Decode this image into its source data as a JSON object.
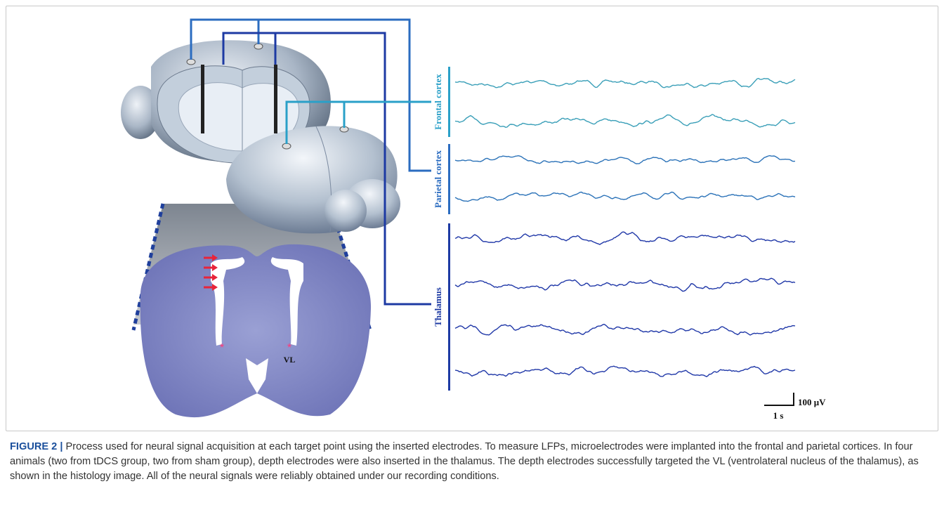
{
  "figure": {
    "labels": {
      "frontal": "Frontal cortex",
      "parietal": "Parietal cortex",
      "thalamus": "Thalamus",
      "vl": "VL"
    },
    "scale_bar": {
      "amplitude": "100 μV",
      "time": "1 s"
    },
    "caption": {
      "label": "FIGURE 2 |",
      "text": "Process used for neural signal acquisition at each target point using the inserted electrodes. To measure LFPs, microelectrodes were implanted into the frontal and parietal cortices. In four animals (two from tDCS group, two from sham group), depth electrodes were also inserted in the thalamus. The depth electrodes successfully targeted the VL (ventrolateral nucleus of the thalamus), as shown in the histology image. All of the neural signals were reliably obtained under our recording conditions."
    }
  }
}
